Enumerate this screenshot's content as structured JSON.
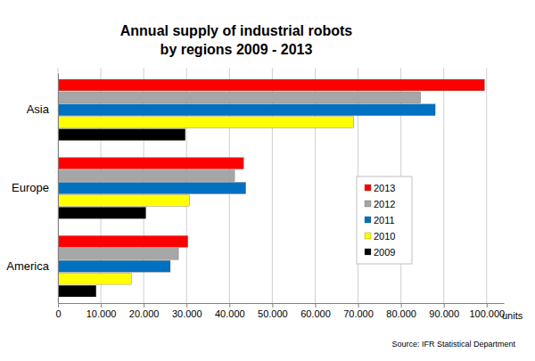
{
  "chart_data": {
    "type": "bar",
    "orientation": "horizontal",
    "title": "Annual supply of industrial robots\nby regions 2009 - 2013",
    "x_label": "units",
    "annotations": [
      "Source: IFR Statistical Department"
    ],
    "categories": [
      "Asia",
      "Europe",
      "America"
    ],
    "series": [
      {
        "name": "2013",
        "color": "#ff0000",
        "values": [
          99500,
          43300,
          30300
        ]
      },
      {
        "name": "2012",
        "color": "#a6a6a6",
        "values": [
          84600,
          41200,
          28100
        ]
      },
      {
        "name": "2011",
        "color": "#0070c0",
        "values": [
          88000,
          43800,
          26200
        ]
      },
      {
        "name": "2010",
        "color": "#ffff00",
        "values": [
          69000,
          30700,
          17100
        ]
      },
      {
        "name": "2009",
        "color": "#000000",
        "values": [
          29700,
          20500,
          8900
        ]
      }
    ],
    "xlim": [
      0,
      104000
    ],
    "xticks": [
      {
        "value": 0,
        "label": "0"
      },
      {
        "value": 10000,
        "label": "10.000"
      },
      {
        "value": 20000,
        "label": "20.000"
      },
      {
        "value": 30000,
        "label": "30.000"
      },
      {
        "value": 40000,
        "label": "40.000"
      },
      {
        "value": 50000,
        "label": "50.000"
      },
      {
        "value": 60000,
        "label": "60.000"
      },
      {
        "value": 70000,
        "label": "70.000"
      },
      {
        "value": 80000,
        "label": "80.000"
      },
      {
        "value": 90000,
        "label": "90.000"
      },
      {
        "value": 100000,
        "label": "100.000"
      }
    ],
    "grid": true,
    "legend": "right"
  }
}
